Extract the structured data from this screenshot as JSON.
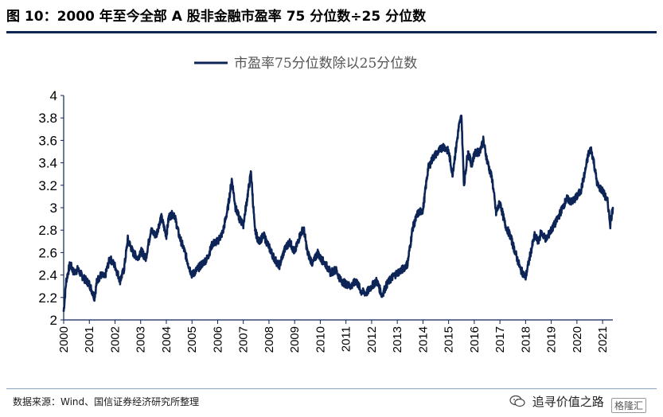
{
  "figure": {
    "title": "图 10：2000 年至今全部 A 股非金融市盈率 75 分位数÷25 分位数",
    "source": "数据来源：Wind、国信证券经济研究所整理",
    "watermark": "追寻价值之路",
    "watermark_logo": "格隆汇"
  },
  "chart_data": {
    "type": "line",
    "title": "",
    "xlabel": "",
    "ylabel": "",
    "ylim": [
      2,
      4
    ],
    "yticks": [
      2,
      2.2,
      2.4,
      2.6,
      2.8,
      3,
      3.2,
      3.4,
      3.6,
      3.8,
      4
    ],
    "ytick_labels": [
      "2",
      "2.2",
      "2.4",
      "2.6",
      "2.8",
      "3",
      "3.2",
      "3.4",
      "3.6",
      "3.8",
      "4"
    ],
    "xlim": [
      2000.0,
      2021.4
    ],
    "xtick_labels": [
      "2000",
      "2001",
      "2002",
      "2003",
      "2004",
      "2005",
      "2006",
      "2007",
      "2008",
      "2009",
      "2010",
      "2011",
      "2012",
      "2013",
      "2014",
      "2015",
      "2016",
      "2017",
      "2018",
      "2019",
      "2020",
      "2021"
    ],
    "grid": false,
    "legend_position": "top-center",
    "line_color": "#0d2457",
    "series": [
      {
        "name": "市盈率75分位数除以25分位数",
        "x": [
          2000.0,
          2000.1,
          2000.25,
          2000.4,
          2000.55,
          2000.75,
          2001.0,
          2001.2,
          2001.3,
          2001.45,
          2001.6,
          2001.8,
          2002.0,
          2002.2,
          2002.35,
          2002.5,
          2002.7,
          2002.9,
          2003.0,
          2003.2,
          2003.4,
          2003.6,
          2003.8,
          2004.0,
          2004.1,
          2004.3,
          2004.5,
          2004.7,
          2004.85,
          2005.0,
          2005.2,
          2005.4,
          2005.6,
          2005.8,
          2006.0,
          2006.2,
          2006.4,
          2006.55,
          2006.7,
          2006.85,
          2007.0,
          2007.15,
          2007.3,
          2007.45,
          2007.6,
          2007.8,
          2008.0,
          2008.2,
          2008.4,
          2008.6,
          2008.8,
          2009.0,
          2009.2,
          2009.35,
          2009.5,
          2009.7,
          2009.9,
          2010.0,
          2010.2,
          2010.4,
          2010.6,
          2010.8,
          2011.0,
          2011.2,
          2011.4,
          2011.6,
          2011.8,
          2012.0,
          2012.2,
          2012.4,
          2012.6,
          2012.8,
          2013.0,
          2013.2,
          2013.4,
          2013.6,
          2013.8,
          2014.0,
          2014.2,
          2014.4,
          2014.6,
          2014.8,
          2015.0,
          2015.15,
          2015.3,
          2015.4,
          2015.5,
          2015.6,
          2015.75,
          2015.9,
          2016.0,
          2016.2,
          2016.35,
          2016.5,
          2016.7,
          2016.85,
          2017.0,
          2017.2,
          2017.4,
          2017.6,
          2017.8,
          2018.0,
          2018.2,
          2018.35,
          2018.5,
          2018.6,
          2018.8,
          2019.0,
          2019.2,
          2019.4,
          2019.6,
          2019.8,
          2020.0,
          2020.15,
          2020.3,
          2020.45,
          2020.55,
          2020.65,
          2020.8,
          2021.0,
          2021.2,
          2021.3,
          2021.4
        ],
        "y": [
          2.08,
          2.35,
          2.5,
          2.42,
          2.45,
          2.38,
          2.32,
          2.2,
          2.35,
          2.4,
          2.38,
          2.55,
          2.48,
          2.35,
          2.45,
          2.72,
          2.6,
          2.55,
          2.62,
          2.55,
          2.8,
          2.75,
          2.92,
          2.75,
          2.92,
          2.95,
          2.75,
          2.62,
          2.5,
          2.4,
          2.45,
          2.5,
          2.55,
          2.68,
          2.7,
          2.78,
          3.0,
          3.25,
          3.0,
          2.9,
          2.85,
          3.08,
          3.32,
          2.8,
          2.7,
          2.75,
          2.65,
          2.55,
          2.48,
          2.62,
          2.7,
          2.6,
          2.75,
          2.82,
          2.6,
          2.5,
          2.6,
          2.55,
          2.5,
          2.42,
          2.45,
          2.35,
          2.32,
          2.3,
          2.35,
          2.25,
          2.24,
          2.3,
          2.35,
          2.22,
          2.32,
          2.38,
          2.42,
          2.45,
          2.5,
          2.82,
          2.95,
          2.98,
          3.35,
          3.45,
          3.5,
          3.55,
          3.5,
          3.3,
          3.55,
          3.72,
          3.82,
          3.2,
          3.5,
          3.38,
          3.48,
          3.5,
          3.6,
          3.42,
          3.25,
          2.95,
          3.05,
          2.85,
          2.75,
          2.6,
          2.45,
          2.38,
          2.6,
          2.75,
          2.7,
          2.78,
          2.72,
          2.8,
          2.88,
          2.98,
          3.08,
          3.05,
          3.1,
          3.15,
          3.3,
          3.48,
          3.52,
          3.42,
          3.2,
          3.15,
          3.05,
          2.85,
          3.0
        ]
      }
    ]
  }
}
